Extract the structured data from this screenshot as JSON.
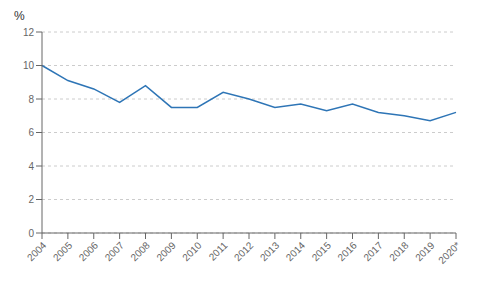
{
  "chart_data": {
    "type": "line",
    "categories": [
      "2004",
      "2005",
      "2006",
      "2007",
      "2008",
      "2009",
      "2010",
      "2011",
      "2012",
      "2013",
      "2014",
      "2015",
      "2016",
      "2017",
      "2018",
      "2019",
      "2020*"
    ],
    "values": [
      10.0,
      9.1,
      8.6,
      7.8,
      8.8,
      7.5,
      7.5,
      8.4,
      8.0,
      7.5,
      7.7,
      7.3,
      7.7,
      7.2,
      7.0,
      6.7,
      7.2
    ],
    "color": "#2E75B6",
    "ylabel": "%",
    "ylim": [
      0,
      12
    ],
    "yticks": [
      0,
      2,
      4,
      6,
      8,
      10,
      12
    ],
    "grid": true
  }
}
